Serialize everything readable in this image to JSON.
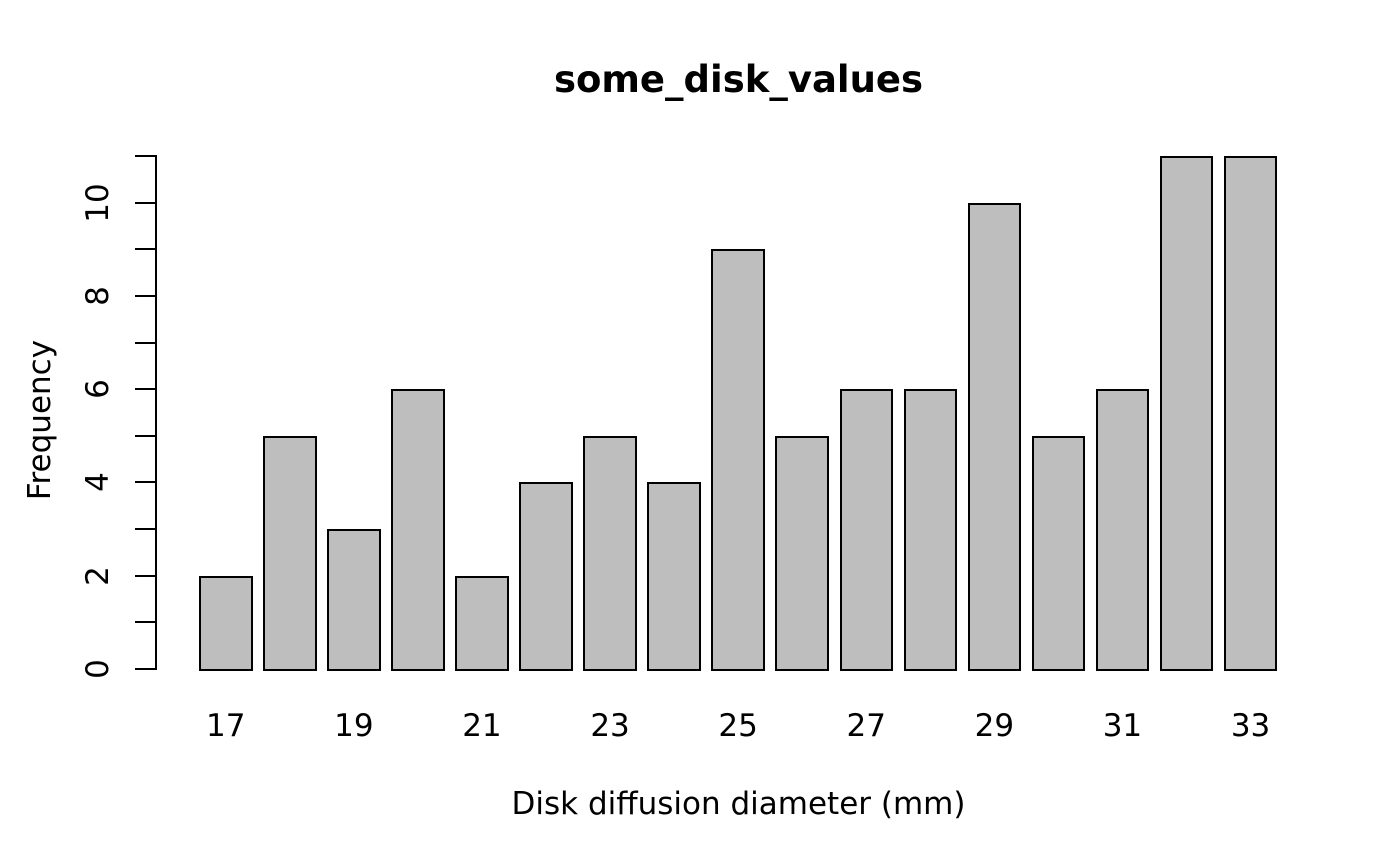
{
  "chart_data": {
    "type": "bar",
    "subtype": "histogram",
    "title": "some_disk_values",
    "xlabel": "Disk diffusion diameter (mm)",
    "ylabel": "Frequency",
    "categories": [
      "17",
      "18",
      "19",
      "20",
      "21",
      "22",
      "23",
      "24",
      "25",
      "26",
      "27",
      "28",
      "29",
      "30",
      "31",
      "32",
      "33"
    ],
    "values": [
      2,
      5,
      3,
      6,
      2,
      4,
      5,
      4,
      9,
      5,
      6,
      6,
      10,
      5,
      6,
      11,
      11
    ],
    "ylim": [
      0,
      11
    ],
    "y_ticks": [
      0,
      1,
      2,
      3,
      4,
      5,
      6,
      7,
      8,
      9,
      10,
      11
    ],
    "y_labeled_ticks": [
      0,
      2,
      4,
      6,
      8,
      10
    ],
    "x_labeled_indices": [
      0,
      2,
      4,
      6,
      8,
      10,
      12,
      14,
      16
    ],
    "x_tick_labels": [
      "17",
      "19",
      "21",
      "23",
      "25",
      "27",
      "29",
      "31",
      "33"
    ],
    "grid": false,
    "legend": false,
    "bar_fill": "#bebebe",
    "bar_border": "#000000",
    "axis_color": "#000000",
    "text_color": "#000000",
    "background": "#ffffff"
  }
}
